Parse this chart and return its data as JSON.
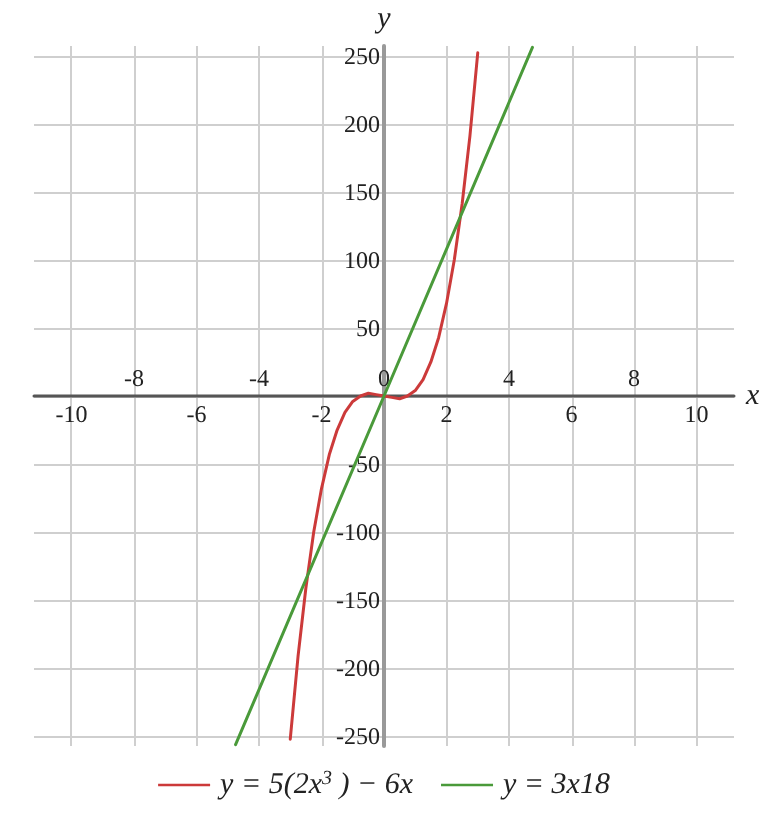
{
  "chart_data": {
    "type": "line",
    "xlabel": "x",
    "ylabel": "y",
    "xlim": [
      -11.2,
      11.2
    ],
    "ylim": [
      -257,
      257
    ],
    "xticks": [
      -10,
      {
        "value": -8,
        "label": null
      },
      -6,
      {
        "value": -4,
        "label": null
      },
      -2,
      {
        "value": 0,
        "label": null
      },
      2,
      {
        "value": 4,
        "label": null
      },
      6,
      {
        "value": 8,
        "label": null
      },
      10
    ],
    "x2lim": [
      -11.2,
      11.2
    ],
    "x2ticks": [
      -8,
      -4,
      0,
      4,
      8
    ],
    "yticks": [
      -250,
      -200,
      -150,
      -100,
      -50,
      {
        "value": 0,
        "label": null
      },
      50,
      100,
      150,
      200,
      250
    ],
    "grid": true,
    "legend": "bottom",
    "marker": "none",
    "line_style": "solid",
    "series": [
      {
        "name": "y = 5(2x$^{3}$ ) − 6x",
        "color": "#cc3a3a",
        "x": [
          -3,
          -2.75,
          -2.5,
          -2.25,
          -2,
          -1.75,
          -1.5,
          -1.25,
          -1,
          -0.75,
          -0.5,
          -0.25,
          0,
          0.25,
          0.5,
          0.75,
          1,
          1.25,
          1.5,
          1.75,
          2,
          2.25,
          2.5,
          2.75,
          3
        ],
        "values": [
          -252,
          -191,
          -141,
          -100,
          -68,
          -43,
          -25,
          -12,
          -4,
          0,
          2,
          1,
          0,
          -1,
          -2,
          0,
          4,
          12,
          25,
          43,
          68,
          100,
          141,
          191,
          252
        ]
      },
      {
        "name": "y = 3x18",
        "color": "#4a9a3a",
        "x": [
          -4.75,
          0,
          4.75
        ],
        "values": [
          -256,
          0,
          256
        ]
      }
    ]
  }
}
